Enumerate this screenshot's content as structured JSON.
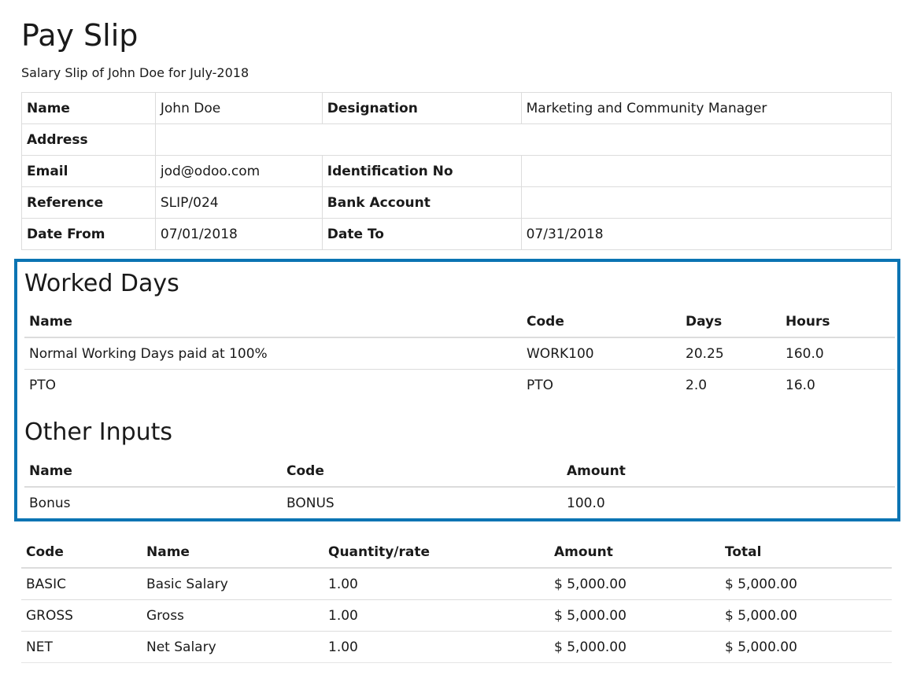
{
  "title": "Pay Slip",
  "subtitle": "Salary Slip of John Doe for July-2018",
  "info": {
    "name_label": "Name",
    "name_value": "John Doe",
    "designation_label": "Designation",
    "designation_value": "Marketing and Community Manager",
    "address_label": "Address",
    "address_value": "",
    "email_label": "Email",
    "email_value": "jod@odoo.com",
    "identification_label": "Identification No",
    "identification_value": "",
    "reference_label": "Reference",
    "reference_value": "SLIP/024",
    "bank_label": "Bank Account",
    "bank_value": "",
    "date_from_label": "Date From",
    "date_from_value": "07/01/2018",
    "date_to_label": "Date To",
    "date_to_value": "07/31/2018"
  },
  "worked_days": {
    "heading": "Worked Days",
    "headers": [
      "Name",
      "Code",
      "Days",
      "Hours"
    ],
    "rows": [
      [
        "Normal Working Days paid at 100%",
        "WORK100",
        "20.25",
        "160.0"
      ],
      [
        "PTO",
        "PTO",
        "2.0",
        "16.0"
      ]
    ]
  },
  "other_inputs": {
    "heading": "Other Inputs",
    "headers": [
      "Name",
      "Code",
      "Amount"
    ],
    "rows": [
      [
        "Bonus",
        "BONUS",
        "100.0"
      ]
    ]
  },
  "lines": {
    "headers": [
      "Code",
      "Name",
      "Quantity/rate",
      "Amount",
      "Total"
    ],
    "rows": [
      [
        "BASIC",
        "Basic Salary",
        "1.00",
        "$ 5,000.00",
        "$ 5,000.00"
      ],
      [
        "GROSS",
        "Gross",
        "1.00",
        "$ 5,000.00",
        "$ 5,000.00"
      ],
      [
        "NET",
        "Net Salary",
        "1.00",
        "$ 5,000.00",
        "$ 5,000.00"
      ]
    ]
  },
  "colors": {
    "highlight_border": "#0b74b3",
    "grid": "#dcdcdc"
  }
}
